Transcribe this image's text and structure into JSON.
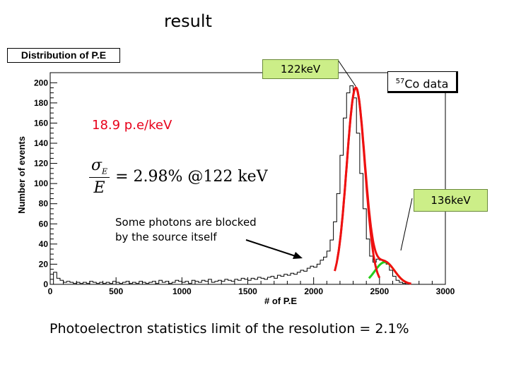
{
  "slide": {
    "title": "result",
    "footer": "Photoelectron statistics limit of the resolution = 2.1%"
  },
  "annotations": {
    "hist_title": "Distribution of P.E",
    "label_122": "122keV",
    "label_136": "136keV",
    "co_source_mass": "57",
    "co_source_text": "Co data",
    "pe_per_kev": "18.9 p.e/keV",
    "formula_num": "σ",
    "formula_sub": "E",
    "formula_den": "E",
    "formula_rhs": "= 2.98% @122 keV",
    "blocked_line1": "Some photons are blocked",
    "blocked_line2": "by the source itself"
  },
  "colors": {
    "histogram": "#000000",
    "fit_total": "#ee1111",
    "fit_122": "#ee1111",
    "fit_136_green": "#22cc22",
    "fit_136_yellow": "#eeee00",
    "callout_bg": "#ccee88",
    "note_red": "#e8001a"
  },
  "chart_data": {
    "type": "histogram",
    "title": "Distribution of P.E",
    "xlabel": "# of P.E",
    "ylabel": "Number of events",
    "xlim": [
      0,
      3000
    ],
    "ylim": [
      0,
      210
    ],
    "xticks": [
      0,
      500,
      1000,
      1500,
      2000,
      2500,
      3000
    ],
    "yticks": [
      0,
      20,
      40,
      60,
      80,
      100,
      120,
      140,
      160,
      180,
      200
    ],
    "bin_width": 25,
    "bin_centers": [
      37.5,
      62.5,
      87.5,
      112.5,
      137.5,
      162.5,
      187.5,
      212.5,
      237.5,
      262.5,
      287.5,
      312.5,
      337.5,
      362.5,
      387.5,
      412.5,
      437.5,
      462.5,
      487.5,
      512.5,
      537.5,
      562.5,
      587.5,
      612.5,
      637.5,
      662.5,
      687.5,
      712.5,
      737.5,
      762.5,
      787.5,
      812.5,
      837.5,
      862.5,
      887.5,
      912.5,
      937.5,
      962.5,
      987.5,
      1012.5,
      1037.5,
      1062.5,
      1087.5,
      1112.5,
      1137.5,
      1162.5,
      1187.5,
      1212.5,
      1237.5,
      1262.5,
      1287.5,
      1312.5,
      1337.5,
      1362.5,
      1387.5,
      1412.5,
      1437.5,
      1462.5,
      1487.5,
      1512.5,
      1537.5,
      1562.5,
      1587.5,
      1612.5,
      1637.5,
      1662.5,
      1687.5,
      1712.5,
      1737.5,
      1762.5,
      1787.5,
      1812.5,
      1837.5,
      1862.5,
      1887.5,
      1912.5,
      1937.5,
      1962.5,
      1987.5,
      2012.5,
      2037.5,
      2062.5,
      2087.5,
      2112.5,
      2137.5,
      2162.5,
      2187.5,
      2212.5,
      2237.5,
      2262.5,
      2287.5,
      2312.5,
      2337.5,
      2362.5,
      2387.5,
      2412.5,
      2437.5,
      2462.5,
      2487.5,
      2512.5,
      2537.5,
      2562.5,
      2587.5,
      2612.5,
      2637.5,
      2662.5,
      2687.5,
      2712.5,
      2737.5,
      2762.5,
      2787.5
    ],
    "counts": [
      12,
      6,
      4,
      2,
      3,
      2,
      1,
      2,
      1,
      2,
      1,
      3,
      2,
      1,
      2,
      1,
      2,
      1,
      3,
      2,
      1,
      2,
      3,
      1,
      2,
      1,
      3,
      2,
      1,
      2,
      3,
      1,
      4,
      2,
      3,
      1,
      2,
      4,
      3,
      2,
      3,
      1,
      4,
      3,
      2,
      4,
      3,
      5,
      2,
      3,
      4,
      3,
      5,
      4,
      3,
      5,
      4,
      6,
      5,
      4,
      6,
      5,
      7,
      6,
      5,
      7,
      8,
      6,
      9,
      8,
      10,
      9,
      11,
      10,
      12,
      14,
      13,
      16,
      18,
      17,
      20,
      24,
      27,
      33,
      44,
      62,
      90,
      128,
      165,
      190,
      197,
      185,
      150,
      110,
      75,
      45,
      28,
      22,
      25,
      24,
      22,
      20,
      14,
      8,
      4,
      2,
      1,
      0,
      0,
      0,
      0
    ],
    "fits": [
      {
        "name": "",
        "color": "#ee1111",
        "type": "gaussian",
        "mean": 2320,
        "sigma": 69,
        "amplitude": 195
      },
      {
        "name": "",
        "color": "#eeee00",
        "type": "gaussian",
        "mean": 2540,
        "sigma": 75,
        "amplitude": 22
      }
    ]
  }
}
